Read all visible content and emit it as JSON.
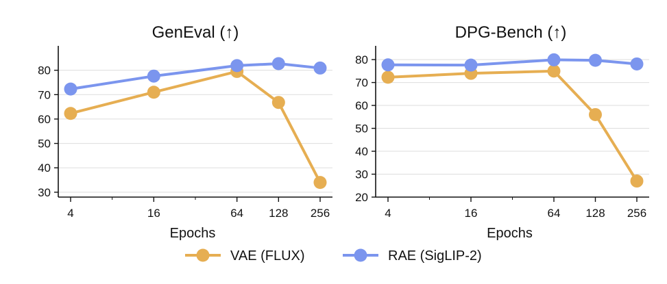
{
  "colors": {
    "vae": "#E6AE52",
    "rae": "#7B95EE",
    "grid": "#dddddd",
    "axis": "#111111"
  },
  "legend": [
    {
      "key": "vae",
      "label": "VAE (FLUX)"
    },
    {
      "key": "rae",
      "label": "RAE (SigLIP-2)"
    }
  ],
  "chart_data": [
    {
      "type": "line",
      "title": "GenEval (↑)",
      "xlabel": "Epochs",
      "ylabel": "",
      "x_scale": "log2",
      "x": [
        4,
        16,
        64,
        128,
        256
      ],
      "x_tick_labels": [
        "4",
        "16",
        "64",
        "128",
        "256"
      ],
      "ylim": [
        28,
        90
      ],
      "y_ticks": [
        30,
        40,
        50,
        60,
        70,
        80
      ],
      "grid": "horizontal",
      "series": [
        {
          "name": "VAE (FLUX)",
          "key": "vae",
          "values": [
            62.3,
            71.0,
            79.5,
            66.8,
            34.0
          ]
        },
        {
          "name": "RAE (SigLIP-2)",
          "key": "rae",
          "values": [
            72.3,
            77.6,
            81.9,
            82.7,
            80.9
          ]
        }
      ]
    },
    {
      "type": "line",
      "title": "DPG-Bench (↑)",
      "xlabel": "Epochs",
      "ylabel": "",
      "x_scale": "log2",
      "x": [
        4,
        16,
        64,
        128,
        256
      ],
      "x_tick_labels": [
        "4",
        "16",
        "64",
        "128",
        "256"
      ],
      "ylim": [
        20,
        86
      ],
      "y_ticks": [
        20,
        30,
        40,
        50,
        60,
        70,
        80
      ],
      "grid": "horizontal",
      "series": [
        {
          "name": "VAE (FLUX)",
          "key": "vae",
          "values": [
            72.3,
            74.0,
            75.0,
            56.0,
            27.0
          ]
        },
        {
          "name": "RAE (SigLIP-2)",
          "key": "rae",
          "values": [
            77.7,
            77.6,
            79.9,
            79.7,
            78.1
          ]
        }
      ]
    }
  ]
}
